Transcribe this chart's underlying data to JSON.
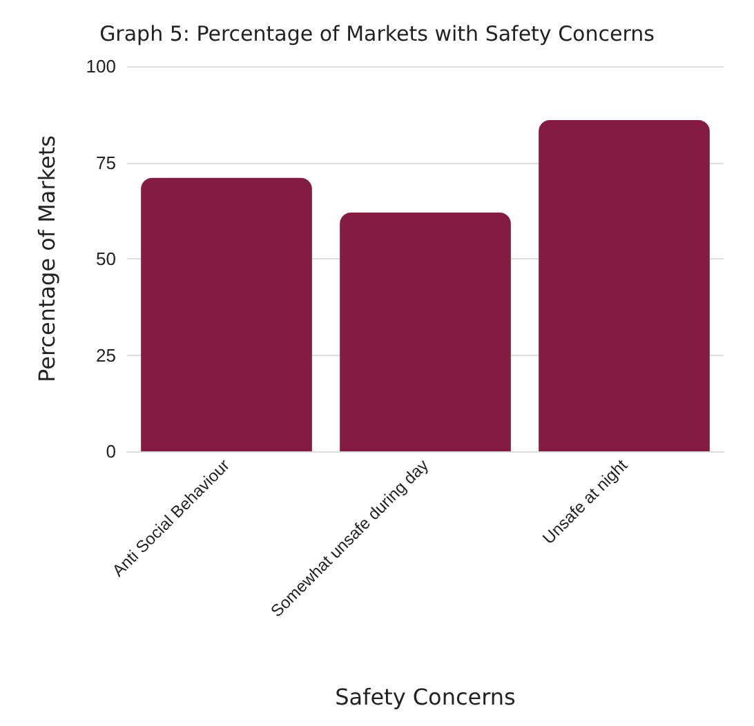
{
  "chart_data": {
    "type": "bar",
    "title": "Graph 5: Percentage of Markets with Safety Concerns",
    "xlabel": "Safety Concerns",
    "ylabel": "Percentage of Markets",
    "categories": [
      "Anti Social Behaviour",
      "Somewhat unsafe during day",
      "Unsafe at night"
    ],
    "values": [
      71,
      62,
      86
    ],
    "color": "#841b41",
    "ylim": [
      0,
      100
    ],
    "yticks": [
      0,
      25,
      50,
      75,
      100
    ],
    "grid": "y"
  }
}
